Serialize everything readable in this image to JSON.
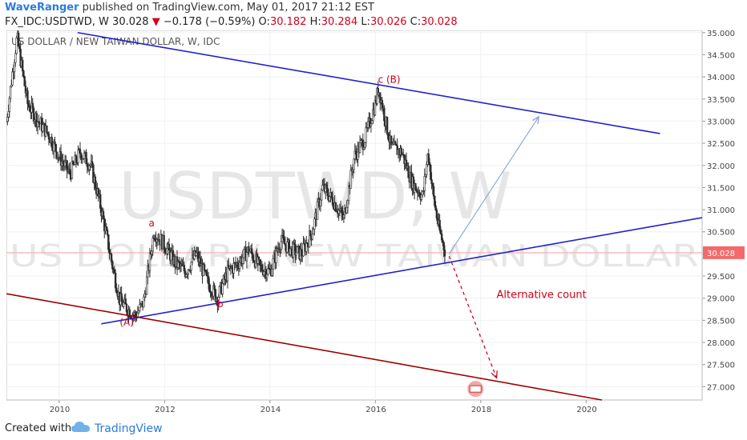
{
  "header": {
    "author": "WaveRanger",
    "published_text": " published on TradingView.com, May 01, 2017 21:12 EST",
    "symbol": "FX_IDC:USDTWD,",
    "interval": "W",
    "last": "30.028",
    "change_arrow": "▼",
    "change": "−0.178 (−0.59%)",
    "o_label": "O:",
    "o_value": "30.182",
    "h_label": "H:",
    "h_value": "30.284",
    "l_label": "L:",
    "l_value": "30.026",
    "c_label": "C:",
    "c_value": "30.028"
  },
  "footer": {
    "created_with": "Created with",
    "brand": "TradingView"
  },
  "colors": {
    "accent": "#2a7ae2",
    "down": "#d0021b",
    "channel": "#2222cc",
    "lower_line": "#a00000",
    "arrow_up": "#8aa0d8",
    "annotation": "#d0021b",
    "price_label_bg": "#f26a6a",
    "candle": "#2d2d2d"
  },
  "chart_data": {
    "type": "candlestick",
    "title": "US DOLLAR / NEW TAIWAN DOLLAR, W, IDC",
    "watermark_symbol": "USDTWD, W",
    "watermark_name": "US DOLLAR / NEW TAIWAN DOLLAR",
    "y_ticks": [
      "35.000",
      "34.500",
      "34.000",
      "33.500",
      "33.000",
      "32.500",
      "32.000",
      "31.500",
      "31.000",
      "30.500",
      "30.000",
      "29.500",
      "29.000",
      "28.500",
      "28.000",
      "27.500",
      "27.000"
    ],
    "x_ticks": [
      "2010",
      "2012",
      "2014",
      "2016",
      "2018",
      "2020"
    ],
    "ylim": [
      26.7,
      35.05
    ],
    "xlim": [
      2009.0,
      2022.2
    ],
    "current_price": "30.028",
    "price_path": [
      [
        2009.0,
        33.0
      ],
      [
        2009.2,
        34.9
      ],
      [
        2009.4,
        33.4
      ],
      [
        2009.6,
        33.0
      ],
      [
        2009.8,
        32.7
      ],
      [
        2010.0,
        32.2
      ],
      [
        2010.2,
        31.8
      ],
      [
        2010.4,
        32.3
      ],
      [
        2010.6,
        32.0
      ],
      [
        2010.8,
        31.0
      ],
      [
        2011.0,
        29.8
      ],
      [
        2011.15,
        28.95
      ],
      [
        2011.3,
        28.75
      ],
      [
        2011.45,
        28.6
      ],
      [
        2011.6,
        28.9
      ],
      [
        2011.8,
        30.5
      ],
      [
        2012.0,
        30.2
      ],
      [
        2012.2,
        29.8
      ],
      [
        2012.4,
        29.6
      ],
      [
        2012.6,
        30.0
      ],
      [
        2012.8,
        29.4
      ],
      [
        2013.0,
        29.0
      ],
      [
        2013.2,
        29.6
      ],
      [
        2013.4,
        29.8
      ],
      [
        2013.6,
        30.1
      ],
      [
        2013.8,
        29.7
      ],
      [
        2014.0,
        29.6
      ],
      [
        2014.2,
        30.3
      ],
      [
        2014.4,
        30.1
      ],
      [
        2014.6,
        30.0
      ],
      [
        2014.8,
        30.5
      ],
      [
        2015.0,
        31.5
      ],
      [
        2015.2,
        31.2
      ],
      [
        2015.4,
        30.8
      ],
      [
        2015.6,
        32.2
      ],
      [
        2015.8,
        32.6
      ],
      [
        2016.0,
        33.4
      ],
      [
        2016.06,
        33.75
      ],
      [
        2016.3,
        32.4
      ],
      [
        2016.5,
        32.3
      ],
      [
        2016.7,
        31.6
      ],
      [
        2016.9,
        31.3
      ],
      [
        2017.0,
        32.3
      ],
      [
        2017.1,
        31.3
      ],
      [
        2017.2,
        30.6
      ],
      [
        2017.33,
        30.028
      ]
    ],
    "annotations": [
      {
        "text": "c (B)",
        "x": 2016.05,
        "y": 33.87
      },
      {
        "text": "a",
        "x": 2011.7,
        "y": 30.62
      },
      {
        "text": "b",
        "x": 2013.0,
        "y": 28.8
      },
      {
        "text": "(A)",
        "x": 2011.15,
        "y": 28.38
      },
      {
        "text": "Alternative count",
        "x": 2018.3,
        "y": 29.0
      }
    ],
    "lines": [
      {
        "name": "upper-channel",
        "from": [
          2010.35,
          35.0
        ],
        "to": [
          2021.4,
          32.72
        ]
      },
      {
        "name": "middle-support",
        "from": [
          2010.8,
          28.42
        ],
        "to": [
          2022.2,
          30.82
        ]
      },
      {
        "name": "lower-line",
        "from": [
          2009.0,
          29.1
        ],
        "to": [
          2020.3,
          26.7
        ]
      },
      {
        "name": "projection-up",
        "from": [
          2017.4,
          30.0
        ],
        "to": [
          2019.1,
          33.1
        ]
      },
      {
        "name": "projection-down",
        "from": [
          2017.4,
          29.95
        ],
        "to": [
          2018.3,
          27.2
        ]
      }
    ]
  }
}
